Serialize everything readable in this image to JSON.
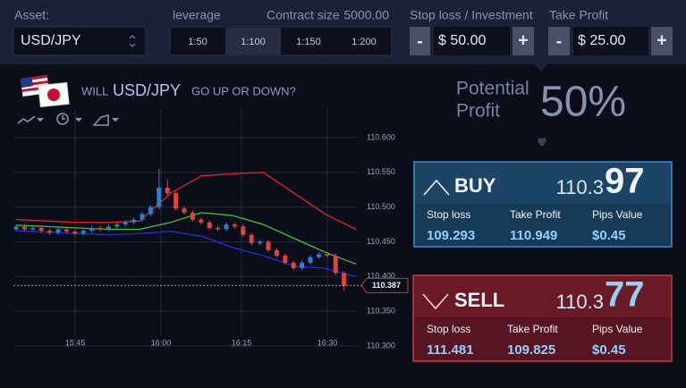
{
  "header": {
    "asset_label": "Asset:",
    "asset": "USD/JPY",
    "leverage_label": "leverage",
    "leverage_options": [
      "1:50",
      "1:100",
      "1:150",
      "1:200"
    ],
    "contract_label": "Contract size",
    "contract_value": "5000.00",
    "stop_loss_label": "Stop loss / Investment",
    "stop_loss_value": "$ 50.00",
    "take_profit_label": "Take Profit",
    "take_profit_value": "$ 25.00",
    "minus": "-",
    "plus": "+"
  },
  "question": {
    "prefix": "WILL",
    "asset": "USD/JPY",
    "suffix": "GO UP OR DOWN?"
  },
  "potential": {
    "line1": "Potential",
    "line2": "Profit",
    "value": "50%"
  },
  "buy": {
    "title": "BUY",
    "price_main": "110.3",
    "price_big": "97",
    "labels": [
      "Stop loss",
      "Take Profit",
      "Pips Value"
    ],
    "values": [
      "109.293",
      "110.949",
      "$0.45"
    ]
  },
  "sell": {
    "title": "SELL",
    "price_main": "110.3",
    "price_big": "77",
    "labels": [
      "Stop loss",
      "Take Profit",
      "Pips Value"
    ],
    "values": [
      "111.481",
      "109.825",
      "$0.45"
    ]
  },
  "chart_data": {
    "type": "candlestick",
    "time_labels": [
      "15:45",
      "16:00",
      "16:15",
      "16:30"
    ],
    "ylim": [
      110.3,
      110.6
    ],
    "yticks": [
      {
        "value": 110.6,
        "label": "110.600"
      },
      {
        "value": 110.55,
        "label": "110.550"
      },
      {
        "value": 110.5,
        "label": "110.500"
      },
      {
        "value": 110.45,
        "label": "110.450"
      },
      {
        "value": 110.4,
        "label": "110.400"
      },
      {
        "value": 110.35,
        "label": "110.350"
      },
      {
        "value": 110.3,
        "label": "110.300"
      }
    ],
    "grid": true,
    "current_price": 110.387,
    "up_color": "#2a7fd0",
    "down_color": "#e0443e",
    "open": [
      110.468,
      110.472,
      110.468,
      110.47,
      110.466,
      110.463,
      110.468,
      110.465,
      110.462,
      110.466,
      110.47,
      110.468,
      110.472,
      110.475,
      110.478,
      110.482,
      110.49,
      110.5,
      110.528,
      110.52,
      110.498,
      110.492,
      110.482,
      110.478,
      110.47,
      110.468,
      110.475,
      110.472,
      110.46,
      110.448,
      110.45,
      110.438,
      110.43,
      110.42,
      110.412,
      110.42,
      110.428,
      110.432,
      110.43,
      110.405
    ],
    "close": [
      110.472,
      110.468,
      110.47,
      110.466,
      110.463,
      110.468,
      110.465,
      110.462,
      110.466,
      110.47,
      110.468,
      110.472,
      110.475,
      110.478,
      110.482,
      110.49,
      110.5,
      110.528,
      110.52,
      110.498,
      110.492,
      110.482,
      110.478,
      110.47,
      110.468,
      110.475,
      110.472,
      110.46,
      110.448,
      110.45,
      110.438,
      110.43,
      110.42,
      110.412,
      110.42,
      110.428,
      110.432,
      110.43,
      110.405,
      110.387
    ],
    "high": [
      110.475,
      110.475,
      110.473,
      110.473,
      110.469,
      110.471,
      110.471,
      110.468,
      110.469,
      110.473,
      110.473,
      110.475,
      110.478,
      110.481,
      110.485,
      110.493,
      110.503,
      110.555,
      110.54,
      110.523,
      110.501,
      110.495,
      110.485,
      110.481,
      110.473,
      110.478,
      110.478,
      110.475,
      110.463,
      110.453,
      110.453,
      110.441,
      110.433,
      110.423,
      110.423,
      110.431,
      110.435,
      110.435,
      110.433,
      110.408
    ],
    "low": [
      110.465,
      110.465,
      110.465,
      110.463,
      110.46,
      110.46,
      110.462,
      110.459,
      110.459,
      110.463,
      110.465,
      110.465,
      110.469,
      110.472,
      110.475,
      110.479,
      110.487,
      110.497,
      110.517,
      110.495,
      110.489,
      110.479,
      110.475,
      110.467,
      110.465,
      110.465,
      110.469,
      110.457,
      110.445,
      110.445,
      110.435,
      110.427,
      110.417,
      110.409,
      110.409,
      110.417,
      110.425,
      110.427,
      110.402,
      110.38
    ],
    "series": [
      {
        "color": "#e3252a",
        "values": [
          110.482,
          110.48,
          110.478,
          110.478,
          110.48,
          110.52,
          110.545,
          110.548,
          110.55,
          110.52,
          110.49,
          110.468
        ]
      },
      {
        "color": "#3cc43c",
        "values": [
          110.474,
          110.472,
          110.47,
          110.468,
          110.468,
          110.478,
          110.492,
          110.488,
          110.475,
          110.455,
          110.435,
          110.418
        ]
      },
      {
        "color": "#2030d8",
        "values": [
          110.466,
          110.464,
          110.462,
          110.46,
          110.462,
          110.465,
          110.458,
          110.442,
          110.43,
          110.415,
          110.412,
          110.4
        ]
      }
    ]
  }
}
